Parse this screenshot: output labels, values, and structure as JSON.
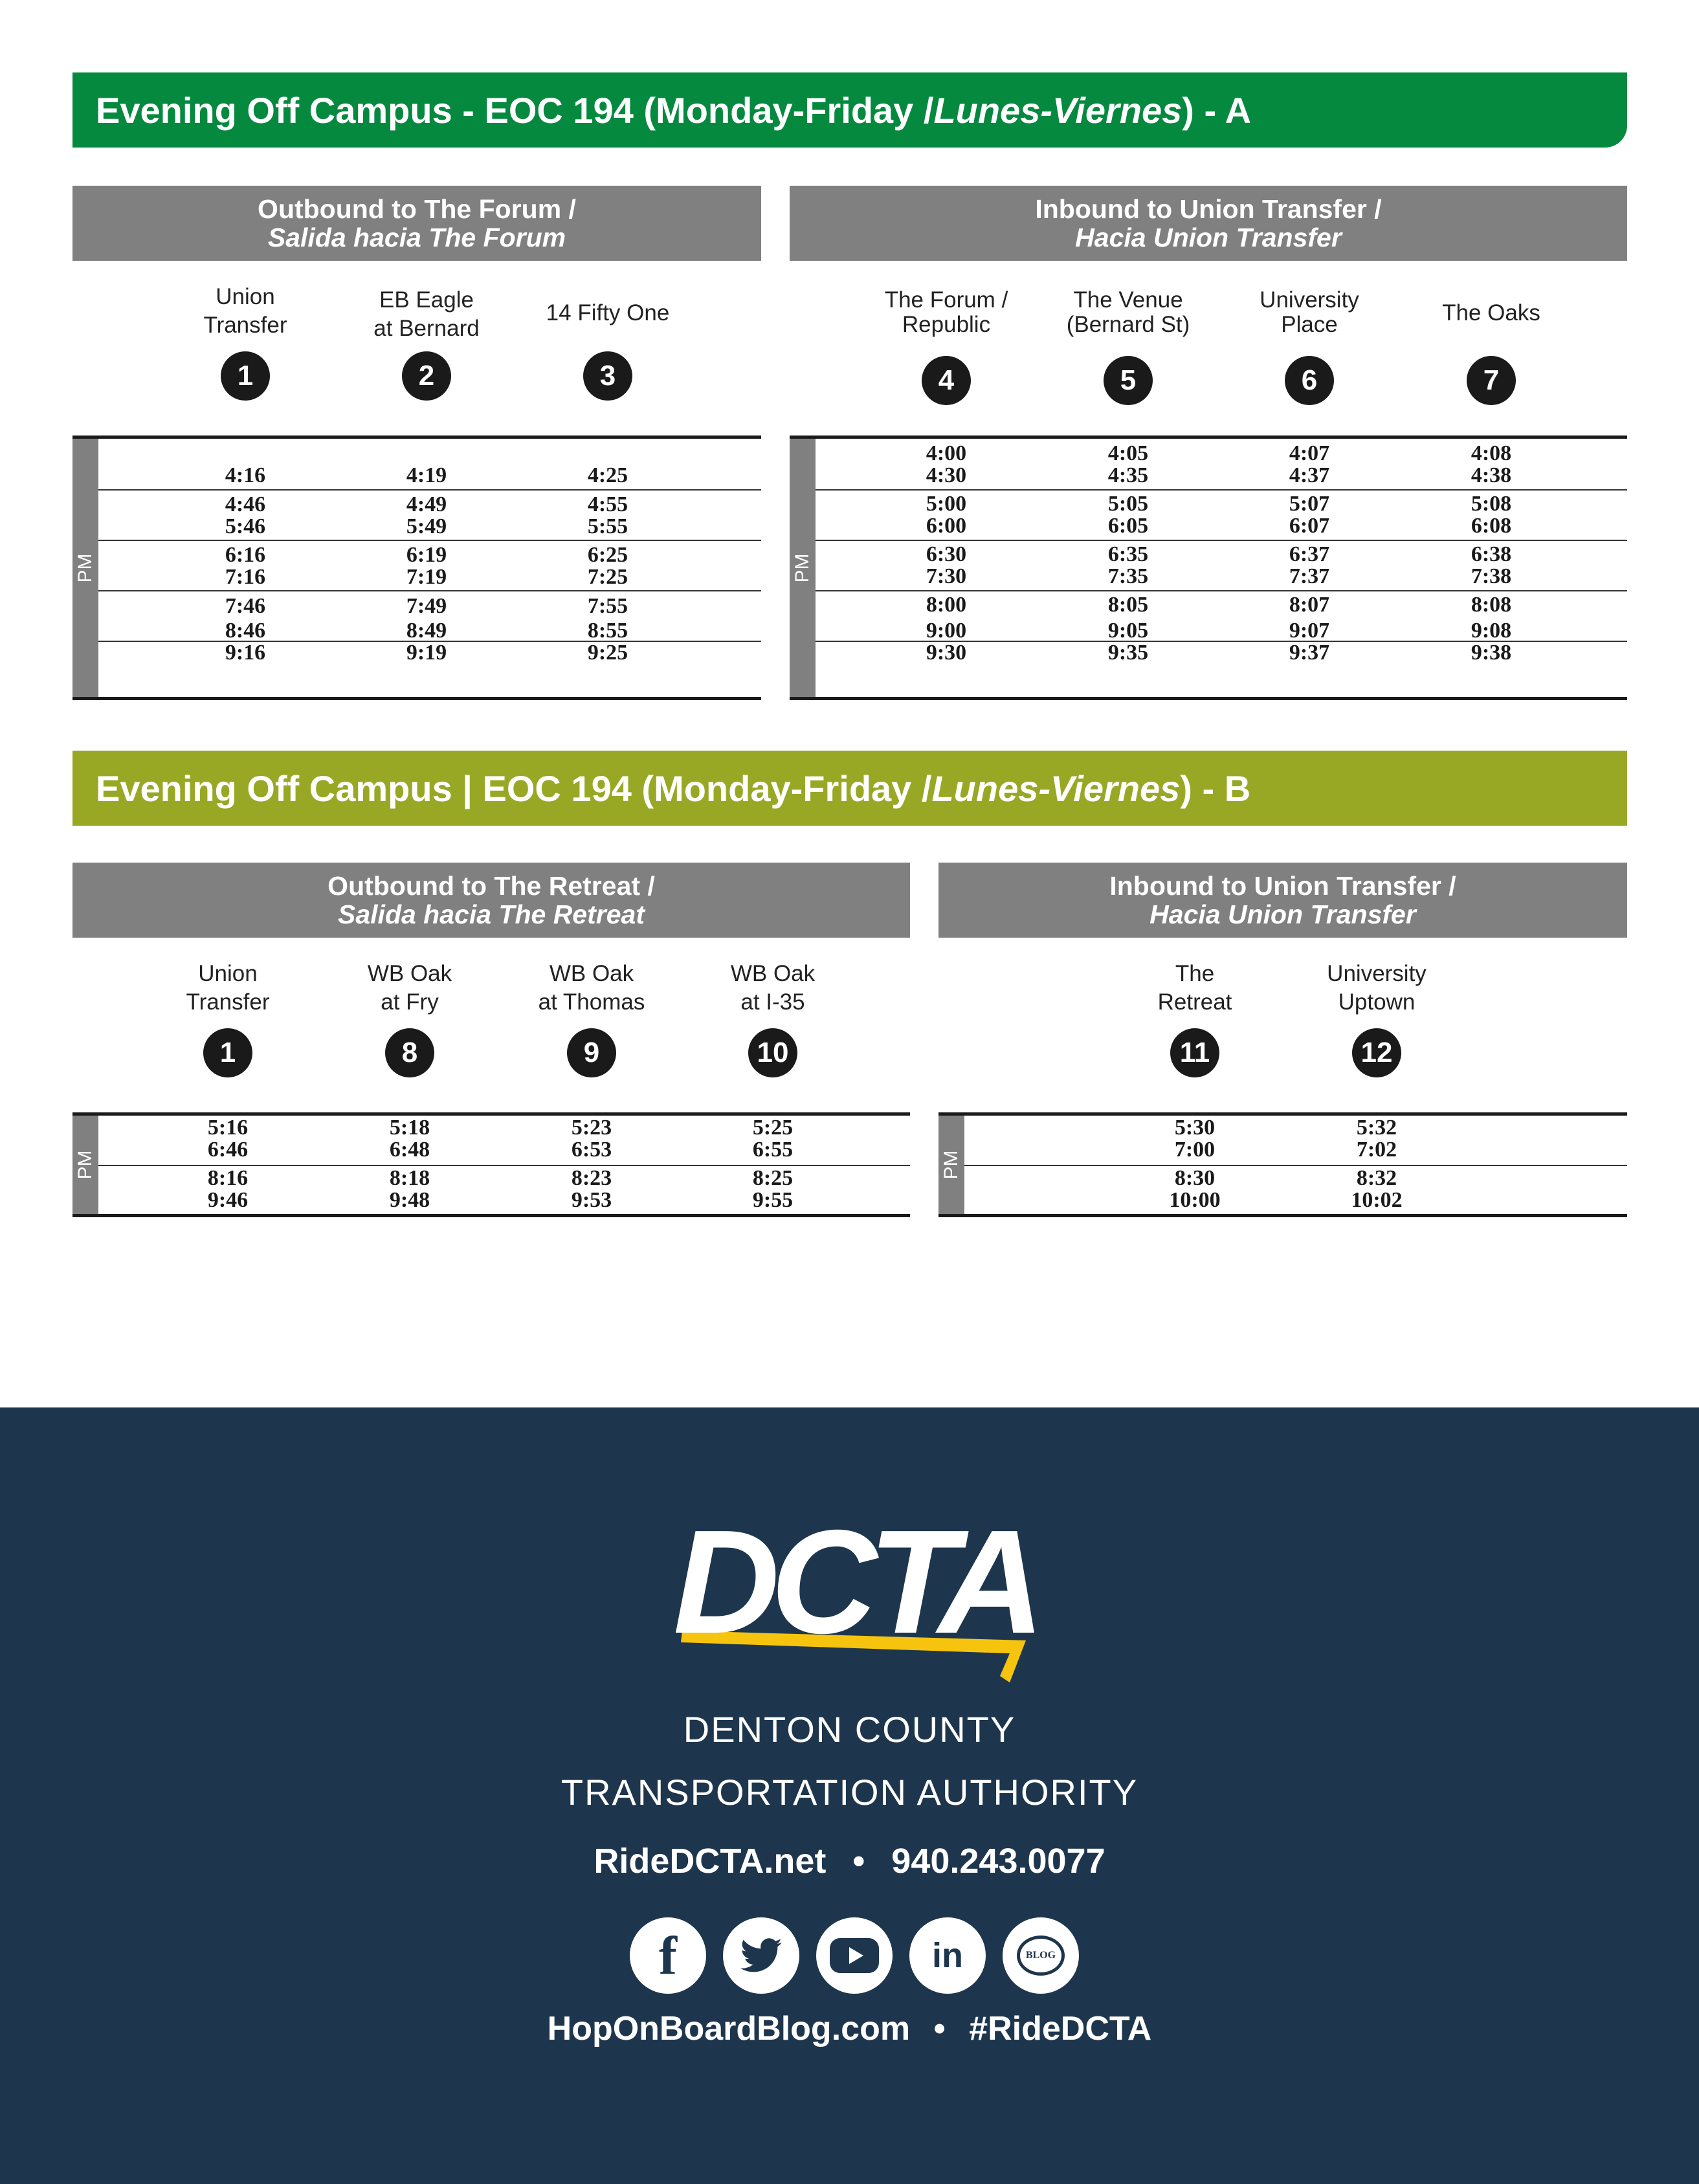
{
  "section_a": {
    "title_prefix": "Evening Off Campus - EOC 194 (Monday-Friday / ",
    "title_italic": "Lunes-Viernes",
    "title_suffix": ") - A",
    "outbound": {
      "header_line1": "Outbound to The Forum /",
      "header_line2": "Salida hacia The Forum",
      "stops": [
        {
          "name1": "Union",
          "name2": "Transfer",
          "num": "1"
        },
        {
          "name1": "EB Eagle",
          "name2": "at Bernard",
          "num": "2"
        },
        {
          "name1": "14 Fifty One",
          "name2": "",
          "num": "3"
        }
      ],
      "pm_label": "PM",
      "times": [
        [
          "4:16",
          "4:19",
          "4:25"
        ],
        [
          "4:46",
          "4:49",
          "4:55"
        ],
        [
          "5:46",
          "5:49",
          "5:55"
        ],
        [
          "6:16",
          "6:19",
          "6:25"
        ],
        [
          "7:16",
          "7:19",
          "7:25"
        ],
        [
          "7:46",
          "7:49",
          "7:55"
        ],
        [
          "8:46",
          "8:49",
          "8:55"
        ],
        [
          "9:16",
          "9:19",
          "9:25"
        ]
      ]
    },
    "inbound": {
      "header_line1": "Inbound to Union Transfer /",
      "header_line2": "Hacia Union Transfer",
      "stops": [
        {
          "name1": "The Forum /",
          "name2": "Republic",
          "num": "4"
        },
        {
          "name1": "The Venue",
          "name2": "(Bernard St)",
          "num": "5"
        },
        {
          "name1": "University",
          "name2": "Place",
          "num": "6"
        },
        {
          "name1": "The Oaks",
          "name2": "",
          "num": "7"
        }
      ],
      "pm_label": "PM",
      "times": [
        [
          "4:00",
          "4:05",
          "4:07",
          "4:08"
        ],
        [
          "4:30",
          "4:35",
          "4:37",
          "4:38"
        ],
        [
          "5:00",
          "5:05",
          "5:07",
          "5:08"
        ],
        [
          "6:00",
          "6:05",
          "6:07",
          "6:08"
        ],
        [
          "6:30",
          "6:35",
          "6:37",
          "6:38"
        ],
        [
          "7:30",
          "7:35",
          "7:37",
          "7:38"
        ],
        [
          "8:00",
          "8:05",
          "8:07",
          "8:08"
        ],
        [
          "9:00",
          "9:05",
          "9:07",
          "9:08"
        ],
        [
          "9:30",
          "9:35",
          "9:37",
          "9:38"
        ]
      ]
    }
  },
  "section_b": {
    "title_prefix": "Evening Off Campus | EOC 194 (Monday-Friday / ",
    "title_italic": "Lunes-Viernes",
    "title_suffix": ") - B",
    "outbound": {
      "header_line1": "Outbound to The Retreat /",
      "header_line2": "Salida hacia The Retreat",
      "stops": [
        {
          "name1": "Union",
          "name2": "Transfer",
          "num": "1"
        },
        {
          "name1": "WB Oak",
          "name2": "at Fry",
          "num": "8"
        },
        {
          "name1": "WB Oak",
          "name2": "at Thomas",
          "num": "9"
        },
        {
          "name1": "WB Oak",
          "name2": "at I-35",
          "num": "10"
        }
      ],
      "pm_label": "PM",
      "times": [
        [
          "5:16",
          "5:18",
          "5:23",
          "5:25"
        ],
        [
          "6:46",
          "6:48",
          "6:53",
          "6:55"
        ],
        [
          "8:16",
          "8:18",
          "8:23",
          "8:25"
        ],
        [
          "9:46",
          "9:48",
          "9:53",
          "9:55"
        ]
      ]
    },
    "inbound": {
      "header_line1": "Inbound to Union Transfer /",
      "header_line2": "Hacia Union Transfer",
      "stops": [
        {
          "name1": "The",
          "name2": "Retreat",
          "num": "11"
        },
        {
          "name1": "University",
          "name2": "Uptown",
          "num": "12"
        }
      ],
      "pm_label": "PM",
      "times": [
        [
          "5:30",
          "5:32"
        ],
        [
          "7:00",
          "7:02"
        ],
        [
          "8:30",
          "8:32"
        ],
        [
          "10:00",
          "10:02"
        ]
      ]
    }
  },
  "footer": {
    "logo_text": "DCTA",
    "org_line1": "DENTON COUNTY",
    "org_line2": "TRANSPORTATION AUTHORITY",
    "website": "RideDCTA.net",
    "separator": "•",
    "phone": "940.243.0077",
    "blog": "HopOnBoardBlog.com",
    "hashtag": "#RideDCTA",
    "social_icons": [
      "facebook-icon",
      "twitter-icon",
      "youtube-icon",
      "linkedin-icon",
      "blog-icon"
    ],
    "social_glyphs": {
      "facebook": "f",
      "linkedin": "in",
      "blog": "BLOG"
    },
    "colors": {
      "navy": "#1e364d",
      "logo_yellow": "#f6c40f"
    }
  },
  "colors": {
    "banner_a": "#05893f",
    "banner_b": "#98a825",
    "panel_header": "#808080"
  }
}
